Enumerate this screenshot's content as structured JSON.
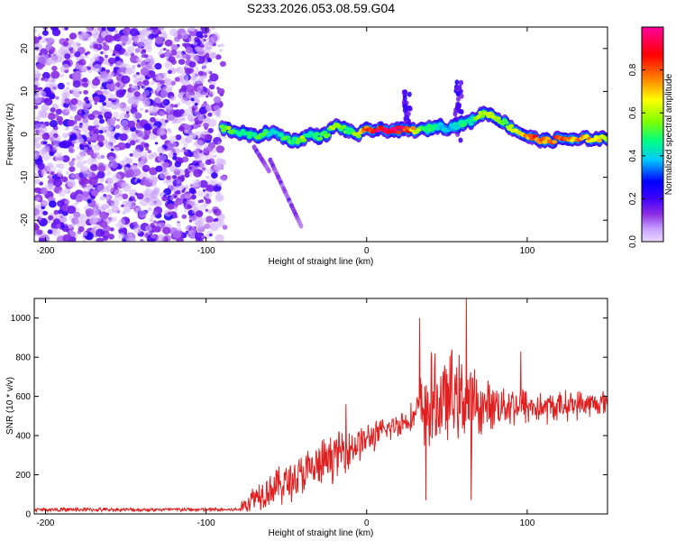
{
  "title": "S233.2026.053.08.59.G04",
  "chart_data": [
    {
      "type": "heatmap",
      "title": "S233.2026.053.08.59.G04",
      "xlabel": "Height of straight line (km)",
      "ylabel": "Frequency (Hz)",
      "xlim": [
        -207,
        150
      ],
      "ylim": [
        -25,
        25
      ],
      "x_ticks": [
        -200,
        -100,
        0,
        100
      ],
      "x_tick_labels": [
        "-200",
        "-100",
        "0",
        "100"
      ],
      "y_ticks": [
        -20,
        -10,
        0,
        10,
        20
      ],
      "y_tick_labels": [
        "-20",
        "-10",
        "0",
        "10",
        "20"
      ],
      "colorbar": {
        "label": "Normalized spectral amplitude",
        "range": [
          0,
          1
        ],
        "ticks": [
          0.0,
          0.2,
          0.4,
          0.6,
          0.8
        ],
        "tick_labels": [
          "0.0",
          "0.2",
          "0.4",
          "0.6",
          "0.8"
        ],
        "colors": [
          "#e8d8ff",
          "#c8a0ff",
          "#8a2be2",
          "#4000ff",
          "#0000ff",
          "#00c8ff",
          "#00ff80",
          "#80ff00",
          "#ffff00",
          "#ff8000",
          "#ff0000",
          "#ff00a0"
        ]
      },
      "noise_region_x": [
        -207,
        -88
      ],
      "ridge": {
        "x": [
          -90,
          -85,
          -80,
          -75,
          -70,
          -65,
          -60,
          -55,
          -50,
          -45,
          -40,
          -35,
          -30,
          -25,
          -20,
          -15,
          -10,
          -5,
          0,
          5,
          10,
          15,
          20,
          25,
          30,
          35,
          40,
          45,
          50,
          55,
          60,
          65,
          70,
          75,
          80,
          85,
          90,
          95,
          100,
          105,
          110,
          115,
          120,
          125,
          130,
          135,
          140,
          145,
          150
        ],
        "frequency": [
          1.5,
          1.0,
          0.5,
          0.0,
          -0.5,
          0.0,
          0.5,
          0.0,
          -1.0,
          -1.5,
          -1.0,
          0.0,
          -0.5,
          0.0,
          2.0,
          1.5,
          0.5,
          0.0,
          1.0,
          1.0,
          1.0,
          1.0,
          1.0,
          1.0,
          1.0,
          1.0,
          1.5,
          2.0,
          1.5,
          2.0,
          2.5,
          3.0,
          4.5,
          5.0,
          4.0,
          3.0,
          1.5,
          0.5,
          -0.5,
          -1.0,
          -1.5,
          -1.5,
          -1.0,
          -1.0,
          -1.5,
          -1.0,
          -1.0,
          -1.0,
          -1.0
        ],
        "amplitude": [
          0.55,
          0.6,
          0.5,
          0.45,
          0.5,
          0.55,
          0.45,
          0.4,
          0.55,
          0.5,
          0.6,
          0.45,
          0.5,
          0.55,
          0.6,
          0.55,
          0.5,
          0.65,
          0.85,
          0.95,
          0.95,
          0.95,
          0.95,
          0.9,
          0.7,
          0.55,
          0.5,
          0.45,
          0.4,
          0.45,
          0.5,
          0.45,
          0.6,
          0.65,
          0.6,
          0.55,
          0.6,
          0.7,
          0.8,
          0.85,
          0.8,
          0.8,
          0.85,
          0.8,
          0.75,
          0.8,
          0.75,
          0.7,
          0.65
        ]
      },
      "streaks": [
        {
          "x": [
            -60,
            -55,
            -50,
            -45,
            -40
          ],
          "frequency": [
            -6,
            -10,
            -14,
            -18,
            -22
          ]
        },
        {
          "x": [
            -70,
            -65,
            -60
          ],
          "frequency": [
            -3,
            -6,
            -9
          ]
        }
      ],
      "bursts": [
        {
          "x": 57,
          "frequency_range": [
            -2,
            13
          ]
        },
        {
          "x": 25,
          "frequency_range": [
            0,
            10
          ]
        }
      ]
    },
    {
      "type": "line",
      "xlabel": "Height of straight line (km)",
      "ylabel": "SNR (10 * v/v)",
      "xlim": [
        -207,
        150
      ],
      "ylim": [
        0,
        1100
      ],
      "x_ticks": [
        -200,
        -100,
        0,
        100
      ],
      "x_tick_labels": [
        "-200",
        "-100",
        "0",
        "100"
      ],
      "y_ticks": [
        0,
        200,
        400,
        600,
        800,
        1000
      ],
      "y_tick_labels": [
        "0",
        "200",
        "400",
        "600",
        "800",
        "1000"
      ],
      "color": "#e02020",
      "envelope": {
        "x": [
          -207,
          -80,
          -75,
          -70,
          -60,
          -50,
          -40,
          -30,
          -20,
          -10,
          0,
          10,
          20,
          30,
          35,
          40,
          50,
          60,
          65,
          70,
          80,
          90,
          100,
          110,
          120,
          130,
          140,
          150
        ],
        "mean": [
          22,
          22,
          50,
          90,
          130,
          160,
          200,
          240,
          300,
          340,
          380,
          420,
          460,
          500,
          540,
          560,
          580,
          600,
          560,
          540,
          560,
          560,
          550,
          540,
          550,
          560,
          560,
          570
        ],
        "spread": [
          12,
          12,
          60,
          90,
          110,
          130,
          140,
          150,
          140,
          130,
          100,
          80,
          80,
          90,
          260,
          300,
          260,
          250,
          300,
          160,
          140,
          130,
          120,
          100,
          90,
          90,
          80,
          70
        ]
      },
      "spikes": [
        {
          "x": -13,
          "value": 560
        },
        {
          "x": 33,
          "value": 1000
        },
        {
          "x": 37,
          "value": 70
        },
        {
          "x": 53,
          "value": 840
        },
        {
          "x": 62,
          "value": 1100
        },
        {
          "x": 65,
          "value": 70
        },
        {
          "x": 96,
          "value": 830
        }
      ]
    }
  ]
}
